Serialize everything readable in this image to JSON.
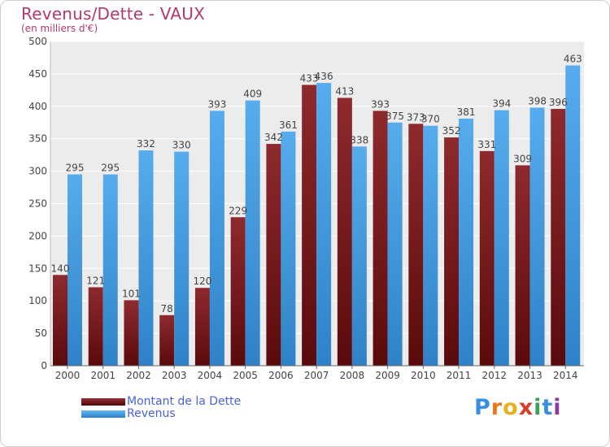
{
  "chart_data": {
    "type": "bar",
    "title": "Revenus/Dette - VAUX",
    "subtitle": "(en milliers d'€)",
    "categories": [
      "2000",
      "2001",
      "2002",
      "2003",
      "2004",
      "2005",
      "2006",
      "2007",
      "2008",
      "2009",
      "2010",
      "2011",
      "2012",
      "2013",
      "2014"
    ],
    "series": [
      {
        "name": "Montant de la Dette",
        "color": "#7a1a1e",
        "values": [
          140,
          121,
          101,
          78,
          120,
          229,
          342,
          433,
          413,
          393,
          373,
          352,
          331,
          309,
          396
        ]
      },
      {
        "name": "Revenus",
        "color": "#4a9fe0",
        "values": [
          295,
          295,
          332,
          330,
          393,
          409,
          361,
          436,
          338,
          375,
          370,
          381,
          394,
          398,
          463
        ]
      }
    ],
    "ylim": [
      0,
      500
    ],
    "yticks": [
      0,
      50,
      100,
      150,
      200,
      250,
      300,
      350,
      400,
      450,
      500
    ],
    "grid": true,
    "legend_position": "bottom-left"
  },
  "logo": {
    "letters": [
      "P",
      "r",
      "o",
      "x",
      "i",
      "t",
      "i"
    ],
    "colors": [
      "#3a8ee0",
      "#e87a1c",
      "#e8b01c",
      "#d63c2a",
      "#3aa05a",
      "#3a8ee0",
      "#8a3aa0"
    ]
  }
}
